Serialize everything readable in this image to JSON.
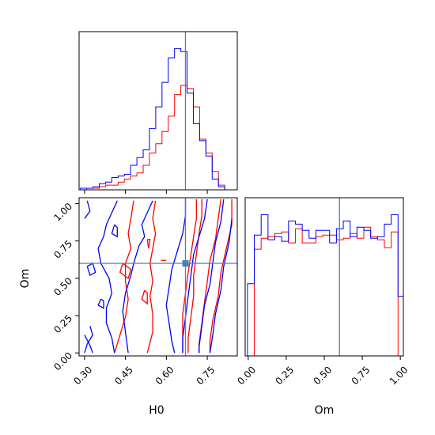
{
  "chart_data": {
    "type": "corner",
    "parameters": [
      "H0",
      "Om"
    ],
    "truths": {
      "H0": 0.67,
      "Om": 0.6
    },
    "truth_color": "#4682b4",
    "series": [
      {
        "color": "#ff0000"
      },
      {
        "color": "#0000ff"
      }
    ],
    "xlim": {
      "H0": [
        0.28,
        0.86
      ],
      "Om": [
        -0.02,
        1.02
      ]
    },
    "ylim": {
      "Om": [
        -0.02,
        1.04
      ]
    },
    "ticks": {
      "H0": [
        {
          "v": 0.3,
          "label": "0.30"
        },
        {
          "v": 0.45,
          "label": "0.45"
        },
        {
          "v": 0.6,
          "label": "0.60"
        },
        {
          "v": 0.75,
          "label": "0.75"
        }
      ],
      "Om": [
        {
          "v": 0.0,
          "label": "0.00"
        },
        {
          "v": 0.25,
          "label": "0.25"
        },
        {
          "v": 0.5,
          "label": "0.50"
        },
        {
          "v": 0.75,
          "label": "0.75"
        },
        {
          "v": 1.0,
          "label": "1.00"
        }
      ]
    },
    "hist_H0": {
      "edges": [
        0.285,
        0.308,
        0.331,
        0.354,
        0.377,
        0.4,
        0.423,
        0.446,
        0.469,
        0.492,
        0.515,
        0.538,
        0.561,
        0.584,
        0.607,
        0.63,
        0.653,
        0.676,
        0.699,
        0.722,
        0.745,
        0.768,
        0.791,
        0.814,
        0.837
      ],
      "series": [
        {
          "counts": [
            0,
            1,
            1,
            2,
            3,
            3,
            5,
            7,
            9,
            11,
            16,
            24,
            30,
            38,
            48,
            62,
            68,
            66,
            54,
            33,
            24,
            12,
            3,
            0
          ]
        },
        {
          "counts": [
            1,
            1,
            2,
            4,
            5,
            8,
            9,
            10,
            16,
            21,
            26,
            40,
            54,
            70,
            86,
            92,
            90,
            63,
            43,
            32,
            22,
            7,
            2,
            0
          ]
        }
      ]
    },
    "hist_Om": {
      "edges": [
        -0.005,
        0.04,
        0.085,
        0.13,
        0.175,
        0.22,
        0.265,
        0.31,
        0.355,
        0.4,
        0.445,
        0.49,
        0.535,
        0.58,
        0.625,
        0.67,
        0.715,
        0.76,
        0.805,
        0.85,
        0.895,
        0.94,
        0.985,
        1.03
      ],
      "series": [
        {
          "counts": [
            0,
            68,
            75,
            76,
            78,
            79,
            72,
            81,
            72,
            72,
            76,
            77,
            77,
            74,
            75,
            78,
            75,
            82,
            76,
            74,
            69,
            79,
            0
          ]
        },
        {
          "counts": [
            46,
            77,
            90,
            74,
            76,
            73,
            86,
            84,
            80,
            75,
            80,
            80,
            72,
            81,
            86,
            76,
            82,
            80,
            75,
            76,
            84,
            90,
            38
          ]
        }
      ]
    },
    "contours": [
      {
        "series": 0,
        "points": [
          [
            0.48,
            1.02
          ],
          [
            0.47,
            0.9
          ],
          [
            0.46,
            0.8
          ],
          [
            0.47,
            0.7
          ],
          [
            0.45,
            0.6
          ],
          [
            0.45,
            0.48
          ],
          [
            0.46,
            0.36
          ],
          [
            0.45,
            0.24
          ],
          [
            0.43,
            0.12
          ],
          [
            0.41,
            0.0
          ]
        ]
      },
      {
        "series": 0,
        "points": [
          [
            0.56,
            1.02
          ],
          [
            0.55,
            0.9
          ],
          [
            0.56,
            0.8
          ],
          [
            0.55,
            0.7
          ],
          [
            0.54,
            0.6
          ],
          [
            0.55,
            0.48
          ],
          [
            0.54,
            0.38
          ],
          [
            0.55,
            0.26
          ],
          [
            0.55,
            0.14
          ],
          [
            0.53,
            0.0
          ]
        ]
      },
      {
        "series": 0,
        "points": [
          [
            0.71,
            1.03
          ],
          [
            0.71,
            0.9
          ],
          [
            0.7,
            0.78
          ],
          [
            0.69,
            0.66
          ],
          [
            0.68,
            0.54
          ],
          [
            0.67,
            0.4
          ],
          [
            0.66,
            0.26
          ],
          [
            0.66,
            0.12
          ],
          [
            0.66,
            0.0
          ]
        ]
      },
      {
        "series": 0,
        "points": [
          [
            0.73,
            1.03
          ],
          [
            0.73,
            0.92
          ],
          [
            0.72,
            0.8
          ],
          [
            0.71,
            0.66
          ],
          [
            0.7,
            0.52
          ],
          [
            0.7,
            0.38
          ],
          [
            0.69,
            0.24
          ],
          [
            0.68,
            0.1
          ],
          [
            0.68,
            0.0
          ]
        ]
      },
      {
        "series": 0,
        "points": [
          [
            0.8,
            1.03
          ],
          [
            0.79,
            0.9
          ],
          [
            0.78,
            0.76
          ],
          [
            0.76,
            0.62
          ],
          [
            0.75,
            0.48
          ],
          [
            0.74,
            0.34
          ],
          [
            0.73,
            0.2
          ],
          [
            0.72,
            0.06
          ],
          [
            0.72,
            0.0
          ]
        ]
      },
      {
        "series": 0,
        "points": [
          [
            0.84,
            1.03
          ],
          [
            0.84,
            0.86
          ],
          [
            0.82,
            0.7
          ],
          [
            0.8,
            0.54
          ],
          [
            0.79,
            0.38
          ],
          [
            0.77,
            0.22
          ],
          [
            0.76,
            0.08
          ],
          [
            0.76,
            0.0
          ]
        ]
      },
      {
        "series": 0,
        "points": [
          [
            0.44,
            0.6
          ],
          [
            0.43,
            0.54
          ],
          [
            0.46,
            0.5
          ],
          [
            0.47,
            0.56
          ],
          [
            0.44,
            0.6
          ]
        ]
      },
      {
        "series": 0,
        "points": [
          [
            0.53,
            0.76
          ],
          [
            0.535,
            0.7
          ],
          [
            0.54,
            0.76
          ],
          [
            0.53,
            0.76
          ]
        ]
      },
      {
        "series": 0,
        "points": [
          [
            0.52,
            0.42
          ],
          [
            0.51,
            0.36
          ],
          [
            0.53,
            0.33
          ],
          [
            0.53,
            0.4
          ],
          [
            0.52,
            0.42
          ]
        ]
      },
      {
        "series": 0,
        "points": [
          [
            0.58,
            0.62
          ],
          [
            0.6,
            0.62
          ]
        ]
      },
      {
        "series": 1,
        "points": [
          [
            0.3,
            0.12
          ],
          [
            0.32,
            0.05
          ],
          [
            0.33,
            0.0
          ]
        ]
      },
      {
        "series": 1,
        "points": [
          [
            0.3,
            0.0
          ],
          [
            0.31,
            0.06
          ],
          [
            0.33,
            0.12
          ],
          [
            0.32,
            0.18
          ]
        ]
      },
      {
        "series": 1,
        "points": [
          [
            0.42,
            1.02
          ],
          [
            0.4,
            0.94
          ],
          [
            0.38,
            0.86
          ],
          [
            0.37,
            0.78
          ],
          [
            0.35,
            0.7
          ],
          [
            0.36,
            0.6
          ],
          [
            0.39,
            0.5
          ],
          [
            0.4,
            0.4
          ],
          [
            0.38,
            0.3
          ],
          [
            0.38,
            0.2
          ],
          [
            0.4,
            0.1
          ],
          [
            0.41,
            0.0
          ]
        ]
      },
      {
        "series": 1,
        "points": [
          [
            0.55,
            1.02
          ],
          [
            0.53,
            0.94
          ],
          [
            0.51,
            0.86
          ],
          [
            0.52,
            0.78
          ],
          [
            0.5,
            0.72
          ],
          [
            0.48,
            0.6
          ],
          [
            0.47,
            0.52
          ],
          [
            0.45,
            0.4
          ],
          [
            0.44,
            0.28
          ],
          [
            0.45,
            0.14
          ],
          [
            0.46,
            0.0
          ]
        ]
      },
      {
        "series": 1,
        "points": [
          [
            0.67,
            1.03
          ],
          [
            0.67,
            0.92
          ],
          [
            0.66,
            0.8
          ],
          [
            0.64,
            0.68
          ],
          [
            0.62,
            0.56
          ],
          [
            0.61,
            0.44
          ],
          [
            0.6,
            0.32
          ],
          [
            0.61,
            0.2
          ],
          [
            0.62,
            0.08
          ],
          [
            0.63,
            0.0
          ]
        ]
      },
      {
        "series": 1,
        "points": [
          [
            0.75,
            1.03
          ],
          [
            0.74,
            0.9
          ],
          [
            0.72,
            0.78
          ],
          [
            0.7,
            0.66
          ],
          [
            0.69,
            0.52
          ],
          [
            0.68,
            0.38
          ],
          [
            0.67,
            0.24
          ],
          [
            0.66,
            0.1
          ],
          [
            0.66,
            0.0
          ]
        ]
      },
      {
        "series": 1,
        "points": [
          [
            0.81,
            1.03
          ],
          [
            0.8,
            0.88
          ],
          [
            0.78,
            0.74
          ],
          [
            0.77,
            0.6
          ],
          [
            0.76,
            0.46
          ],
          [
            0.74,
            0.32
          ],
          [
            0.73,
            0.18
          ],
          [
            0.72,
            0.04
          ],
          [
            0.72,
            0.0
          ]
        ]
      },
      {
        "series": 1,
        "points": [
          [
            0.84,
            0.9
          ],
          [
            0.83,
            0.74
          ],
          [
            0.81,
            0.58
          ],
          [
            0.8,
            0.42
          ],
          [
            0.78,
            0.26
          ],
          [
            0.77,
            0.12
          ],
          [
            0.76,
            0.0
          ]
        ]
      },
      {
        "series": 1,
        "points": [
          [
            0.31,
            0.58
          ],
          [
            0.32,
            0.52
          ],
          [
            0.34,
            0.54
          ],
          [
            0.33,
            0.6
          ],
          [
            0.31,
            0.58
          ]
        ]
      },
      {
        "series": 1,
        "points": [
          [
            0.36,
            0.36
          ],
          [
            0.35,
            0.32
          ],
          [
            0.37,
            0.3
          ],
          [
            0.37,
            0.35
          ],
          [
            0.36,
            0.36
          ]
        ]
      },
      {
        "series": 1,
        "points": [
          [
            0.41,
            0.86
          ],
          [
            0.4,
            0.8
          ],
          [
            0.42,
            0.78
          ],
          [
            0.42,
            0.84
          ],
          [
            0.41,
            0.86
          ]
        ]
      },
      {
        "series": 1,
        "points": [
          [
            0.31,
            1.02
          ],
          [
            0.32,
            0.95
          ],
          [
            0.3,
            0.9
          ]
        ]
      }
    ]
  }
}
